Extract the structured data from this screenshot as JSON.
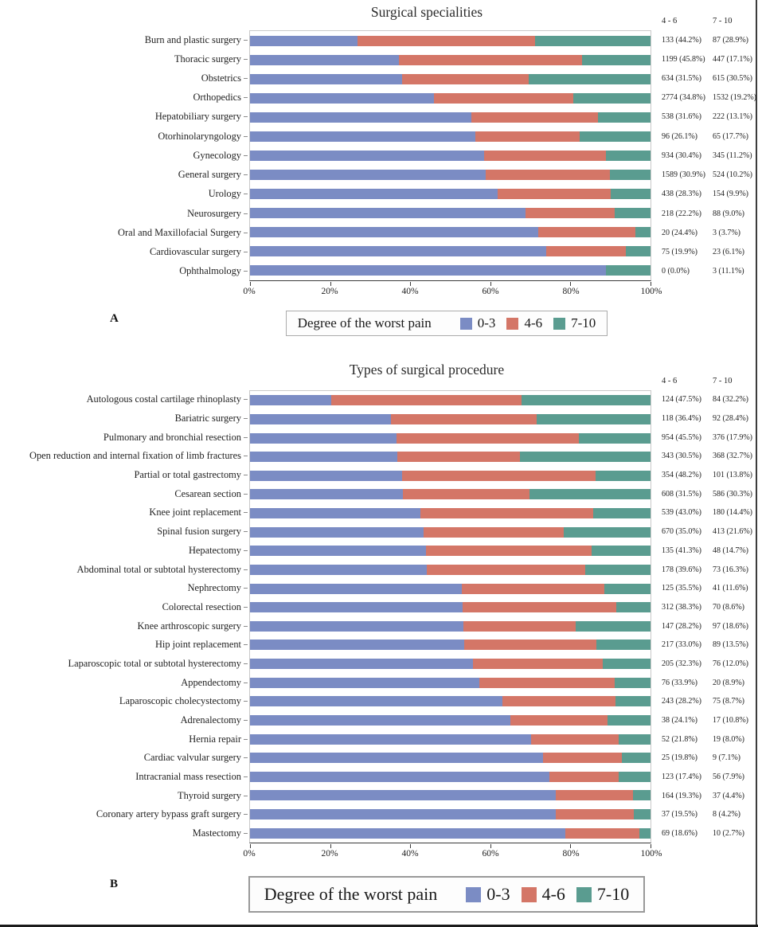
{
  "figure": {
    "panel_a_label": "A",
    "panel_b_label": "B",
    "legend_title": "Degree of the worst pain",
    "legend_items": [
      {
        "label": "0-3",
        "color": "#7b8cc4"
      },
      {
        "label": "4-6",
        "color": "#d47667"
      },
      {
        "label": "7-10",
        "color": "#5a9c90"
      }
    ],
    "col_headers": [
      "4 - 6",
      "7 - 10"
    ],
    "axis_color": "#3a3a3a",
    "panel_border_color": "#c9c9c9"
  },
  "chart_data": [
    {
      "type": "bar",
      "orientation": "horizontal",
      "stacked": true,
      "title": "Surgical specialities",
      "xlabel": "",
      "ylabel": "",
      "xlim": [
        0,
        100
      ],
      "x_ticks": [
        "0%",
        "20%",
        "40%",
        "60%",
        "80%",
        "100%"
      ],
      "legend_position": "bottom",
      "grid": false,
      "categories": [
        "Burn and plastic surgery",
        "Thoracic surgery",
        "Obstetrics",
        "Orthopedics",
        "Hepatobiliary surgery",
        "Otorhinolaryngology",
        "Gynecology",
        "General surgery",
        "Urology",
        "Neurosurgery",
        "Oral and Maxillofacial Surgery",
        "Cardiovascular surgery",
        "Ophthalmology"
      ],
      "series": [
        {
          "name": "0-3",
          "values": [
            26.9,
            37.1,
            38.0,
            46.0,
            55.3,
            56.2,
            58.4,
            58.9,
            61.8,
            68.8,
            71.9,
            74.0,
            88.9
          ]
        },
        {
          "name": "4-6",
          "values": [
            44.2,
            45.8,
            31.5,
            34.8,
            31.6,
            26.1,
            30.4,
            30.9,
            28.3,
            22.2,
            24.4,
            19.9,
            0.0
          ]
        },
        {
          "name": "7-10",
          "values": [
            28.9,
            17.1,
            30.5,
            19.2,
            13.1,
            17.7,
            11.2,
            10.2,
            9.9,
            9.0,
            3.7,
            6.1,
            11.1
          ]
        }
      ],
      "annotations_4_6": [
        "133 (44.2%)",
        "1199 (45.8%)",
        "634 (31.5%)",
        "2774 (34.8%)",
        "538 (31.6%)",
        "96 (26.1%)",
        "934 (30.4%)",
        "1589 (30.9%)",
        "438 (28.3%)",
        "218 (22.2%)",
        "20 (24.4%)",
        "75 (19.9%)",
        "0 (0.0%)"
      ],
      "annotations_7_10": [
        "87 (28.9%)",
        "447 (17.1%)",
        "615 (30.5%)",
        "1532 (19.2%)",
        "222 (13.1%)",
        "65 (17.7%)",
        "345 (11.2%)",
        "524 (10.2%)",
        "154 (9.9%)",
        "88 (9.0%)",
        "3 (3.7%)",
        "23 (6.1%)",
        "3 (11.1%)"
      ]
    },
    {
      "type": "bar",
      "orientation": "horizontal",
      "stacked": true,
      "title": "Types of surgical procedure",
      "xlabel": "",
      "ylabel": "",
      "xlim": [
        0,
        100
      ],
      "x_ticks": [
        "0%",
        "20%",
        "40%",
        "60%",
        "80%",
        "100%"
      ],
      "legend_position": "bottom",
      "grid": false,
      "categories": [
        "Autologous costal cartilage rhinoplasty",
        "Bariatric surgery",
        "Pulmonary and bronchial resection",
        "Open reduction and internal fixation of limb fractures",
        "Partial or total gastrectomy",
        "Cesarean section",
        "Knee joint replacement",
        "Spinal fusion surgery",
        "Hepatectomy",
        "Abdominal total or subtotal hysterectomy",
        "Nephrectomy",
        "Colorectal resection",
        "Knee arthroscopic surgery",
        "Hip joint replacement",
        "Laparoscopic total or subtotal hysterectomy",
        "Appendectomy",
        "Laparoscopic cholecystectomy",
        "Adrenalectomy",
        "Hernia repair",
        "Cardiac valvular surgery",
        "Intracranial mass resection",
        "Thyroid surgery",
        "Coronary artery bypass graft surgery",
        "Mastectomy"
      ],
      "series": [
        {
          "name": "0-3",
          "values": [
            20.3,
            35.2,
            36.6,
            36.8,
            38.0,
            38.2,
            42.6,
            43.4,
            44.0,
            44.1,
            52.9,
            53.1,
            53.2,
            53.5,
            55.7,
            57.2,
            63.1,
            65.1,
            70.2,
            73.1,
            74.7,
            76.3,
            76.3,
            78.7
          ]
        },
        {
          "name": "4-6",
          "values": [
            47.5,
            36.4,
            45.5,
            30.5,
            48.2,
            31.5,
            43.0,
            35.0,
            41.3,
            39.6,
            35.5,
            38.3,
            28.2,
            33.0,
            32.3,
            33.9,
            28.2,
            24.1,
            21.8,
            19.8,
            17.4,
            19.3,
            19.5,
            18.6
          ]
        },
        {
          "name": "7-10",
          "values": [
            32.2,
            28.4,
            17.9,
            32.7,
            13.8,
            30.3,
            14.4,
            21.6,
            14.7,
            16.3,
            11.6,
            8.6,
            18.6,
            13.5,
            12.0,
            8.9,
            8.7,
            10.8,
            8.0,
            7.1,
            7.9,
            4.4,
            4.2,
            2.7
          ]
        }
      ],
      "annotations_4_6": [
        "124 (47.5%)",
        "118 (36.4%)",
        "954 (45.5%)",
        "343 (30.5%)",
        "354 (48.2%)",
        "608 (31.5%)",
        "539 (43.0%)",
        "670 (35.0%)",
        "135 (41.3%)",
        "178 (39.6%)",
        "125 (35.5%)",
        "312 (38.3%)",
        "147 (28.2%)",
        "217 (33.0%)",
        "205 (32.3%)",
        "76 (33.9%)",
        "243 (28.2%)",
        "38 (24.1%)",
        "52 (21.8%)",
        "25 (19.8%)",
        "123 (17.4%)",
        "164 (19.3%)",
        "37 (19.5%)",
        "69 (18.6%)"
      ],
      "annotations_7_10": [
        "84 (32.2%)",
        "92 (28.4%)",
        "376 (17.9%)",
        "368 (32.7%)",
        "101 (13.8%)",
        "586 (30.3%)",
        "180 (14.4%)",
        "413 (21.6%)",
        "48 (14.7%)",
        "73 (16.3%)",
        "41 (11.6%)",
        "70 (8.6%)",
        "97 (18.6%)",
        "89 (13.5%)",
        "76 (12.0%)",
        "20 (8.9%)",
        "75 (8.7%)",
        "17 (10.8%)",
        "19 (8.0%)",
        "9 (7.1%)",
        "56 (7.9%)",
        "37 (4.4%)",
        "8 (4.2%)",
        "10 (2.7%)"
      ]
    }
  ]
}
